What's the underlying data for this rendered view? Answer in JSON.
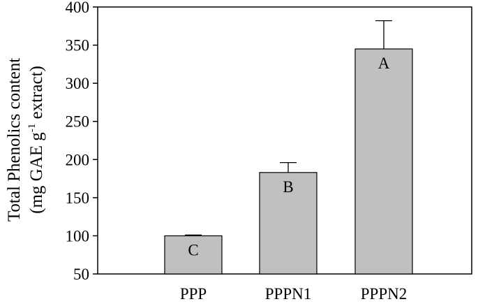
{
  "chart_data": {
    "type": "bar",
    "categories": [
      "PPP",
      "PPPN1",
      "PPPN2"
    ],
    "values": [
      100,
      183,
      345
    ],
    "errors": [
      1,
      13,
      37
    ],
    "letters": [
      "C",
      "B",
      "A"
    ],
    "ylabel_line1": "Total Phenolics content",
    "ylabel_line2_main": "(mg GAE g",
    "ylabel_line2_sup": "-1",
    "ylabel_line2_tail": " extract)",
    "ylim": [
      50,
      400
    ],
    "yticks": [
      "50",
      "100",
      "150",
      "200",
      "250",
      "300",
      "350",
      "400"
    ],
    "grid": false,
    "bar_color": "#c0c0c0"
  }
}
